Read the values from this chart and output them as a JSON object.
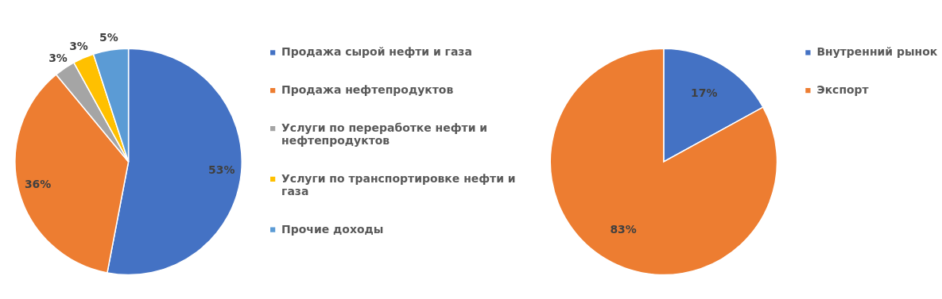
{
  "chart_data": [
    {
      "type": "pie",
      "categories": [
        "Продажа сырой нефти и газа",
        "Продажа нефтепродуктов",
        "Услуги по переработке нефти и нефтепродуктов",
        "Услуги по транспортировке нефти и газа",
        "Прочие доходы"
      ],
      "values": [
        53,
        36,
        3,
        3,
        5
      ],
      "colors": [
        "#4472c4",
        "#ed7d31",
        "#a5a5a5",
        "#ffc000",
        "#5b9bd5"
      ],
      "value_labels": [
        "53%",
        "36%",
        "3%",
        "3%",
        "5%"
      ],
      "legend": "right"
    },
    {
      "type": "pie",
      "categories": [
        "Внутренний рынок",
        "Экспорт"
      ],
      "values": [
        17,
        83
      ],
      "colors": [
        "#4472c4",
        "#ed7d31"
      ],
      "value_labels": [
        "17%",
        "83%"
      ],
      "legend": "right"
    }
  ]
}
